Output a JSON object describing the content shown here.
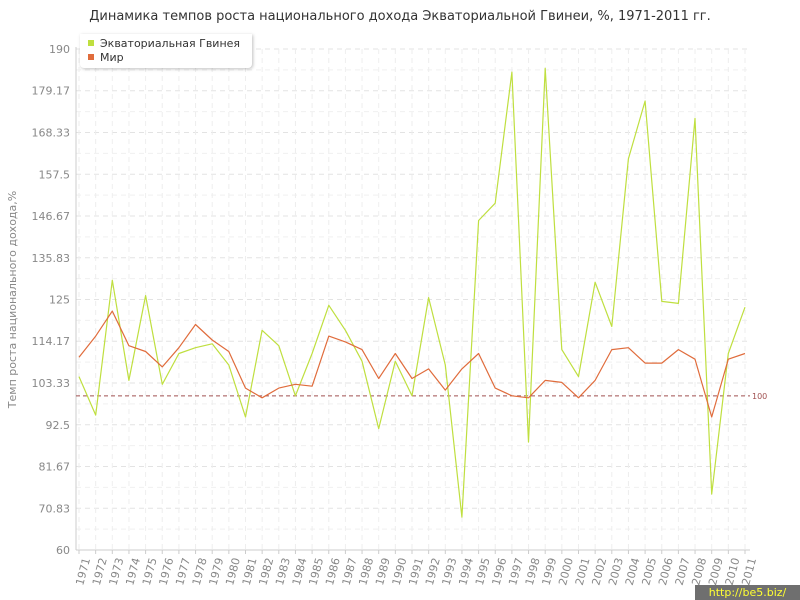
{
  "chart_data": {
    "type": "line",
    "title": "Динамика темпов роста национального дохода Экваториальной Гвинеи, %, 1971-2011 гг.",
    "ylabel": "Темп роста национального дохода,%",
    "xlabel": "",
    "ylim": [
      60,
      190
    ],
    "yticks": [
      "60",
      "70.83",
      "81.67",
      "92.5",
      "103.33",
      "114.17",
      "125",
      "135.83",
      "146.67",
      "157.5",
      "168.33",
      "179.17",
      "190"
    ],
    "categories": [
      "1971",
      "1972",
      "1973",
      "1974",
      "1975",
      "1976",
      "1977",
      "1978",
      "1979",
      "1980",
      "1981",
      "1982",
      "1983",
      "1984",
      "1985",
      "1986",
      "1987",
      "1988",
      "1989",
      "1990",
      "1991",
      "1992",
      "1993",
      "1994",
      "1995",
      "1996",
      "1997",
      "1998",
      "1999",
      "2000",
      "2001",
      "2002",
      "2003",
      "2004",
      "2005",
      "2006",
      "2007",
      "2008",
      "2009",
      "2010",
      "2011"
    ],
    "series": [
      {
        "name": "Экваториальная Гвинея",
        "color": "#bfdf3f",
        "values": [
          105,
          95,
          130,
          104,
          126,
          103,
          111,
          112.5,
          113.5,
          108,
          94.5,
          117,
          113,
          100,
          111,
          123.5,
          117,
          109,
          91.5,
          109,
          100,
          125.5,
          108,
          68.5,
          145.5,
          150,
          184,
          88,
          185,
          112,
          105,
          129.5,
          118,
          161.5,
          176.5,
          124.5,
          124,
          172,
          74.5,
          111,
          123
        ]
      },
      {
        "name": "Мир",
        "color": "#e06c3c",
        "values": [
          110,
          115.5,
          122,
          113,
          111.5,
          107.5,
          112.5,
          118.5,
          114.5,
          111.5,
          102,
          99.5,
          102,
          103,
          102.5,
          115.5,
          114,
          112,
          104.5,
          111,
          104.5,
          107,
          101.5,
          107,
          111,
          102,
          100,
          99.5,
          104,
          103.5,
          99.5,
          104,
          112,
          112.5,
          108.5,
          108.5,
          112,
          109.5,
          94.5,
          109.5,
          111
        ]
      }
    ],
    "reference_line": {
      "value": 100,
      "label": "100",
      "color": "#a05050"
    },
    "grid": true,
    "legend_position": "top-left"
  },
  "watermark": {
    "text": "http://be5.biz/"
  }
}
